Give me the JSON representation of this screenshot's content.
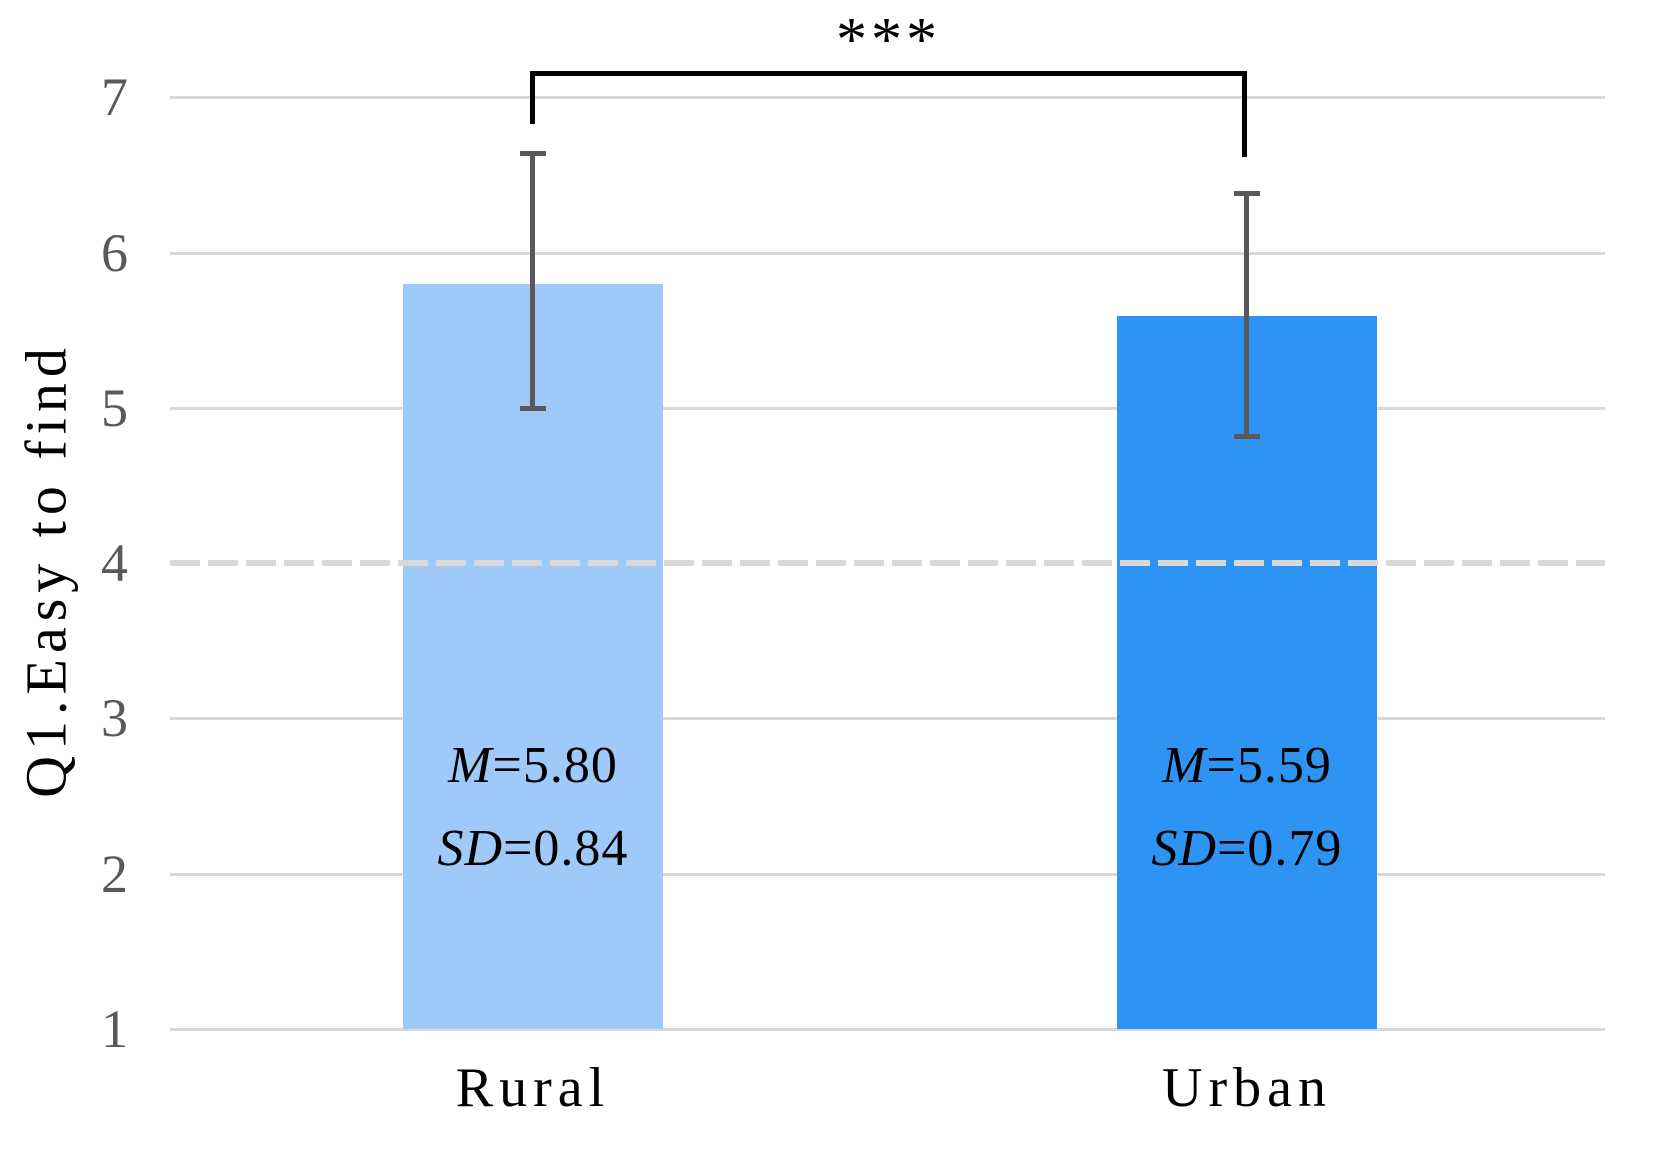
{
  "chart_data": {
    "type": "bar",
    "title": "",
    "xlabel": "",
    "ylabel": "Q1.Easy to find",
    "categories": [
      "Rural",
      "Urban"
    ],
    "series": [
      {
        "name": "Mean",
        "values": [
          5.8,
          5.59
        ]
      }
    ],
    "error_bars_sd": [
      0.84,
      0.79
    ],
    "ylim": [
      1,
      7
    ],
    "yticks": [
      1,
      2,
      3,
      4,
      5,
      6,
      7
    ],
    "bar_baseline": 1,
    "reference_line_y": 4,
    "reference_line_style": "dashed",
    "grid": true,
    "legend_position": "none",
    "significance_label": "***",
    "significance_between": [
      "Rural",
      "Urban"
    ],
    "bar_colors": [
      "#9FC9F8",
      "#2E94F4"
    ],
    "bar_annotations": [
      {
        "category": "Rural",
        "lines": [
          "M=5.80",
          "SD=0.84"
        ]
      },
      {
        "category": "Urban",
        "lines": [
          "M=5.59",
          "SD=0.79"
        ]
      }
    ]
  },
  "y_axis": {
    "title": "Q1.Easy to find",
    "ticks": [
      "7",
      "6",
      "5",
      "4",
      "3",
      "2",
      "1"
    ]
  },
  "x_axis": {
    "labels": [
      "Rural",
      "Urban"
    ]
  },
  "bars": [
    {
      "label": "Rural",
      "m_italic": "M",
      "m_rest": "=5.80",
      "sd_italic": "SD",
      "sd_rest": "=0.84"
    },
    {
      "label": "Urban",
      "m_italic": "M",
      "m_rest": "=5.59",
      "sd_italic": "SD",
      "sd_rest": "=0.79"
    }
  ],
  "significance": {
    "label": "***"
  },
  "colors": {
    "bar_rural": "#9FC9F8",
    "bar_urban": "#2E94F4",
    "gridline": "#D9D9D9",
    "reference_line": "#D9D9D9",
    "error_bar": "#595959",
    "tick_label": "#595959",
    "text": "#000000"
  }
}
